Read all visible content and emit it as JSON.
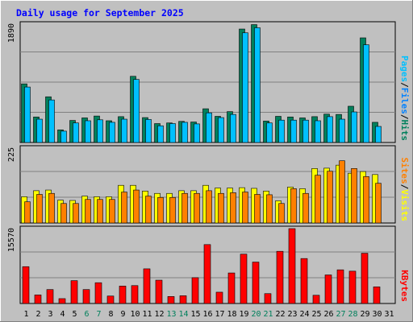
{
  "chart_data": {
    "type": "bar",
    "title": "Daily usage for September 2025",
    "colors": {
      "hits": "#00805c",
      "files": "#0080ff",
      "pages": "#00c0ff",
      "visits": "#ffff00",
      "sites": "#ff8000",
      "kbytes": "#ff0000",
      "weekend_label": "#00805c",
      "title": "#0000ff",
      "background": "#c0c0c0"
    },
    "days": [
      "1",
      "2",
      "3",
      "4",
      "5",
      "6",
      "7",
      "8",
      "9",
      "10",
      "11",
      "12",
      "13",
      "14",
      "15",
      "16",
      "17",
      "18",
      "19",
      "20",
      "21",
      "22",
      "23",
      "24",
      "25",
      "26",
      "27",
      "28",
      "29",
      "30",
      "31"
    ],
    "weekend_days": [
      "6",
      "7",
      "13",
      "14",
      "20",
      "21",
      "27",
      "28"
    ],
    "panels": [
      {
        "key": "requests",
        "max_label": "1890",
        "ymax": 1890,
        "legend": [
          {
            "text": "Pages",
            "color": "#00c0ff"
          },
          {
            "text": "/",
            "color": "#000000"
          },
          {
            "text": "Files",
            "color": "#0080ff"
          },
          {
            "text": "/",
            "color": "#000000"
          },
          {
            "text": "Hits",
            "color": "#00805c"
          }
        ],
        "series": [
          {
            "name": "Hits",
            "color": "#00805c",
            "values": [
              930,
              405,
              725,
              200,
              350,
              390,
              420,
              345,
              410,
              1050,
              395,
              300,
              310,
              335,
              325,
              535,
              415,
              490,
              1800,
              1870,
              340,
              415,
              405,
              390,
              410,
              450,
              445,
              575,
              1660,
              320,
              0
            ]
          },
          {
            "name": "Files",
            "color": "#00c0ff",
            "values": [
              880,
              370,
              675,
              180,
              310,
              345,
              360,
              320,
              370,
              1000,
              365,
              265,
              300,
              320,
              295,
              470,
              395,
              445,
              1740,
              1820,
              310,
              355,
              355,
              355,
              345,
              410,
              370,
              485,
              1550,
              255,
              0
            ]
          }
        ]
      },
      {
        "key": "visitors",
        "max_label": "225",
        "ymax": 225,
        "legend": [
          {
            "text": "Sites",
            "color": "#ff8000"
          },
          {
            "text": "/",
            "color": "#000000"
          },
          {
            "text": "Visits",
            "color": "#ffff00"
          }
        ],
        "series": [
          {
            "name": "Visits",
            "color": "#ffff00",
            "values": [
              78,
              96,
              98,
              68,
              67,
              80,
              78,
              78,
              112,
              112,
              95,
              88,
              88,
              96,
              96,
              112,
              104,
              104,
              105,
              103,
              95,
              66,
              107,
              102,
              162,
              163,
              172,
              148,
              153,
              144,
              0
            ]
          },
          {
            "name": "Sites",
            "color": "#ff8000",
            "values": [
              63,
              85,
              88,
              58,
              58,
              70,
              70,
              70,
              92,
              98,
              80,
              76,
              76,
              88,
              88,
              96,
              88,
              90,
              92,
              85,
              84,
              58,
              102,
              88,
              142,
              154,
              185,
              162,
              138,
              118,
              0
            ]
          }
        ]
      },
      {
        "key": "kbytes",
        "max_label": "15570",
        "ymax": 15570,
        "legend": [
          {
            "text": "KBytes",
            "color": "#ff0000"
          }
        ],
        "series": [
          {
            "name": "KBytes",
            "color": "#ff0000",
            "values": [
              7660,
              1780,
              2900,
              1010,
              4750,
              2900,
              4320,
              1550,
              3620,
              3720,
              7210,
              4850,
              1450,
              1610,
              5370,
              12250,
              2350,
              6350,
              10260,
              8610,
              2050,
              10850,
              15570,
              9350,
              1710,
              5940,
              7000,
              6720,
              10450,
              3460,
              0
            ]
          }
        ]
      }
    ]
  }
}
